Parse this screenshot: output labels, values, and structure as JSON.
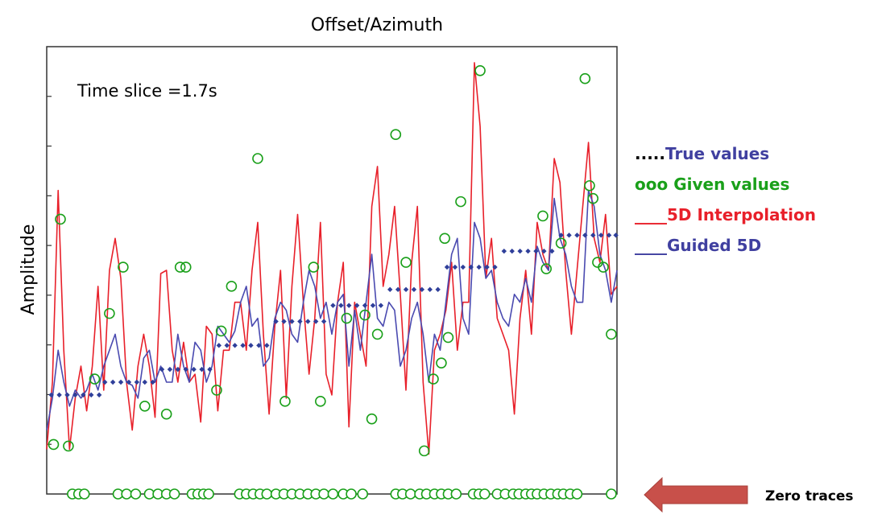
{
  "chart_data": {
    "type": "line",
    "title": "Offset/Azimuth",
    "xlabel": "",
    "ylabel": "Amplitude",
    "annotation": "Time slice =1.7s",
    "xlim": [
      0,
      100
    ],
    "ylim": [
      -1.0,
      1.0
    ],
    "grid": false,
    "legend_position": "right",
    "legend": [
      {
        "prefix": ".....",
        "label": "True values",
        "prefix_color": "#000000",
        "color": "#4040a0"
      },
      {
        "prefix": "ooo",
        "label": "Given values",
        "prefix_color": "#1aa01a",
        "color": "#1aa01a"
      },
      {
        "prefix": "____",
        "label": "5D Interpolation",
        "prefix_color": "#e8202a",
        "color": "#e8202a"
      },
      {
        "prefix": "____",
        "label": "Guided 5D",
        "prefix_color": "#4040a0",
        "color": "#4040a0"
      }
    ],
    "arrow_label": "Zero traces",
    "colors": {
      "true": "#2f3f9a",
      "given": "#1aa01a",
      "interp": "#e8202a",
      "guided": "#4a4ab0",
      "arrow": "#c8504a"
    },
    "series": [
      {
        "name": "True values",
        "x": [
          0.8,
          2.2,
          3.6,
          5.0,
          6.4,
          7.8,
          9.2,
          10.2,
          11.6,
          13.0,
          14.4,
          15.8,
          17.2,
          18.6,
          20.2,
          21.6,
          23.0,
          24.4,
          25.8,
          27.2,
          28.6,
          30.2,
          31.6,
          33.0,
          34.4,
          35.8,
          37.2,
          38.6,
          40.2,
          41.6,
          43.0,
          44.4,
          45.8,
          47.2,
          48.6,
          50.2,
          51.6,
          53.0,
          54.4,
          55.8,
          57.2,
          58.6,
          60.2,
          61.6,
          63.0,
          64.4,
          65.8,
          67.2,
          68.6,
          70.2,
          71.6,
          73.0,
          74.4,
          75.8,
          77.2,
          78.6,
          80.2,
          81.6,
          83.0,
          84.4,
          85.8,
          87.2,
          88.6,
          90.2,
          91.6,
          93.0,
          94.4,
          95.8,
          97.2,
          98.6,
          99.8
        ],
        "y": [
          -0.38,
          -0.38,
          -0.38,
          -0.38,
          -0.38,
          -0.38,
          -0.38,
          -0.3,
          -0.3,
          -0.3,
          -0.3,
          -0.3,
          -0.3,
          -0.3,
          -0.22,
          -0.22,
          -0.22,
          -0.22,
          -0.22,
          -0.22,
          -0.22,
          -0.07,
          -0.07,
          -0.07,
          -0.07,
          -0.07,
          -0.07,
          -0.07,
          0.08,
          0.08,
          0.08,
          0.08,
          0.08,
          0.08,
          0.08,
          0.18,
          0.18,
          0.18,
          0.18,
          0.18,
          0.18,
          0.18,
          0.28,
          0.28,
          0.28,
          0.28,
          0.28,
          0.28,
          0.28,
          0.42,
          0.42,
          0.42,
          0.42,
          0.42,
          0.42,
          0.42,
          0.52,
          0.52,
          0.52,
          0.52,
          0.52,
          0.52,
          0.52,
          0.62,
          0.62,
          0.62,
          0.62,
          0.62,
          0.62,
          0.62,
          0.62
        ]
      },
      {
        "name": "Given values",
        "x": [
          1.2,
          2.4,
          3.8,
          8.4,
          11.0,
          13.4,
          17.2,
          21.0,
          23.4,
          24.4,
          29.8,
          30.6,
          32.4,
          37.0,
          41.8,
          46.8,
          48.0,
          52.6,
          55.8,
          57.0,
          58.0,
          61.2,
          63.0,
          66.2,
          67.8,
          69.2,
          69.8,
          72.6,
          70.4,
          76.0,
          87.0,
          87.6,
          90.2,
          94.4,
          95.2,
          95.8,
          96.6,
          97.6,
          99.0
        ],
        "y": [
          -0.69,
          0.72,
          -0.7,
          -0.28,
          0.13,
          0.42,
          -0.45,
          -0.5,
          0.42,
          0.42,
          -0.35,
          0.02,
          0.3,
          1.1,
          -0.42,
          0.42,
          -0.42,
          0.1,
          0.12,
          -0.53,
          0.0,
          1.25,
          0.45,
          -0.73,
          -0.28,
          -0.18,
          0.6,
          0.83,
          -0.02,
          1.65,
          0.74,
          0.41,
          0.57,
          1.6,
          0.93,
          0.85,
          0.45,
          0.42,
          0.0
        ]
      },
      {
        "name": "5D Interpolation",
        "x": [
          0,
          1,
          2,
          3,
          4,
          5,
          6,
          7,
          8,
          9,
          10,
          11,
          12,
          13,
          14,
          15,
          16,
          17,
          18,
          19,
          20,
          21,
          22,
          23,
          24,
          25,
          26,
          27,
          28,
          29,
          30,
          31,
          32,
          33,
          34,
          35,
          36,
          37,
          38,
          39,
          40,
          41,
          42,
          43,
          44,
          45,
          46,
          47,
          48,
          49,
          50,
          51,
          52,
          53,
          54,
          55,
          56,
          57,
          58,
          59,
          60,
          61,
          62,
          63,
          64,
          65,
          66,
          67,
          68,
          69,
          70,
          71,
          72,
          73,
          74,
          75,
          76,
          77,
          78,
          79,
          80,
          81,
          82,
          83,
          84,
          85,
          86,
          87,
          88,
          89,
          90,
          91,
          92,
          93,
          94,
          95,
          96,
          97,
          98,
          99,
          100
        ],
        "y": [
          -0.72,
          -0.3,
          0.9,
          -0.1,
          -0.72,
          -0.4,
          -0.2,
          -0.48,
          -0.2,
          0.3,
          -0.35,
          0.4,
          0.6,
          0.35,
          -0.3,
          -0.6,
          -0.2,
          0.0,
          -0.2,
          -0.52,
          0.38,
          0.4,
          -0.1,
          -0.3,
          -0.05,
          -0.3,
          -0.25,
          -0.55,
          0.05,
          0.0,
          -0.48,
          -0.1,
          -0.1,
          0.2,
          0.2,
          -0.1,
          0.4,
          0.7,
          0.0,
          -0.5,
          0.05,
          0.4,
          -0.4,
          0.3,
          0.75,
          0.2,
          -0.25,
          0.1,
          0.7,
          -0.25,
          -0.38,
          0.2,
          0.45,
          -0.58,
          0.2,
          0.0,
          -0.2,
          0.8,
          1.05,
          0.3,
          0.5,
          0.8,
          0.25,
          -0.35,
          0.45,
          0.8,
          -0.3,
          -0.75,
          -0.1,
          0.0,
          0.15,
          0.45,
          -0.1,
          0.2,
          0.2,
          1.7,
          1.3,
          0.35,
          0.6,
          0.1,
          0.0,
          -0.1,
          -0.5,
          0.1,
          0.4,
          0.0,
          0.7,
          0.5,
          0.4,
          1.1,
          0.95,
          0.4,
          0.0,
          0.4,
          0.8,
          1.2,
          0.6,
          0.45,
          0.75,
          0.25,
          0.3
        ]
      },
      {
        "name": "Guided 5D",
        "x": [
          0,
          1,
          2,
          3,
          4,
          5,
          6,
          7,
          8,
          9,
          10,
          11,
          12,
          13,
          14,
          15,
          16,
          17,
          18,
          19,
          20,
          21,
          22,
          23,
          24,
          25,
          26,
          27,
          28,
          29,
          30,
          31,
          32,
          33,
          34,
          35,
          36,
          37,
          38,
          39,
          40,
          41,
          42,
          43,
          44,
          45,
          46,
          47,
          48,
          49,
          50,
          51,
          52,
          53,
          54,
          55,
          56,
          57,
          58,
          59,
          60,
          61,
          62,
          63,
          64,
          65,
          66,
          67,
          68,
          69,
          70,
          71,
          72,
          73,
          74,
          75,
          76,
          77,
          78,
          79,
          80,
          81,
          82,
          83,
          84,
          85,
          86,
          87,
          88,
          89,
          90,
          91,
          92,
          93,
          94,
          95,
          96,
          97,
          98,
          99,
          100
        ],
        "y": [
          -0.6,
          -0.4,
          -0.1,
          -0.3,
          -0.45,
          -0.35,
          -0.4,
          -0.35,
          -0.25,
          -0.35,
          -0.2,
          -0.1,
          0.0,
          -0.2,
          -0.3,
          -0.32,
          -0.4,
          -0.15,
          -0.1,
          -0.3,
          -0.2,
          -0.3,
          -0.3,
          0.0,
          -0.2,
          -0.3,
          -0.05,
          -0.1,
          -0.3,
          -0.2,
          0.05,
          0.0,
          -0.05,
          0.02,
          0.2,
          0.3,
          0.05,
          0.1,
          -0.2,
          -0.15,
          0.1,
          0.2,
          0.15,
          0.0,
          -0.05,
          0.2,
          0.4,
          0.3,
          0.1,
          0.2,
          0.0,
          0.2,
          0.25,
          -0.2,
          0.15,
          -0.1,
          0.2,
          0.5,
          0.1,
          0.05,
          0.2,
          0.15,
          -0.2,
          -0.1,
          0.1,
          0.2,
          0.0,
          -0.3,
          0.0,
          -0.1,
          0.2,
          0.5,
          0.6,
          0.1,
          0.0,
          0.7,
          0.6,
          0.35,
          0.4,
          0.2,
          0.1,
          0.05,
          0.25,
          0.2,
          0.35,
          0.2,
          0.55,
          0.45,
          0.4,
          0.85,
          0.6,
          0.5,
          0.3,
          0.2,
          0.2,
          0.9,
          0.8,
          0.5,
          0.4,
          0.2,
          0.4
        ]
      }
    ],
    "zero_trace_positions": [
      4.5,
      5.6,
      6.6,
      12.5,
      14.0,
      15.6,
      18.0,
      19.5,
      21.0,
      22.4,
      25.5,
      26.5,
      27.5,
      28.4,
      33.8,
      35.0,
      36.2,
      37.4,
      38.6,
      40.2,
      41.6,
      43.0,
      44.4,
      45.8,
      47.2,
      48.6,
      50.2,
      52.0,
      53.4,
      55.4,
      61.2,
      62.4,
      63.8,
      65.4,
      66.6,
      68.0,
      69.2,
      70.4,
      71.8,
      74.8,
      75.8,
      76.8,
      79.0,
      80.4,
      81.8,
      82.8,
      84.0,
      85.0,
      86.0,
      87.2,
      88.4,
      89.6,
      90.6,
      91.8,
      93.0,
      99.0
    ]
  }
}
